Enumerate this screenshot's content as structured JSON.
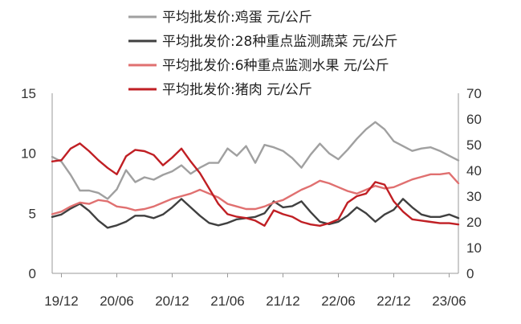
{
  "chart_data": {
    "type": "line",
    "x_ticks": [
      "19/12",
      "20/06",
      "20/12",
      "21/06",
      "21/12",
      "22/06",
      "22/12",
      "23/06"
    ],
    "x_range": [
      "2019-11",
      "2023-07"
    ],
    "left_axis": {
      "ylim": [
        0,
        15
      ],
      "ticks": [
        "0",
        "5",
        "10",
        "15"
      ]
    },
    "right_axis": {
      "ylim": [
        0,
        70
      ],
      "ticks": [
        "0",
        "10",
        "20",
        "30",
        "40",
        "50",
        "60",
        "70"
      ]
    },
    "legend_position": "top",
    "grid": false,
    "series": [
      {
        "name": "平均批发价:鸡蛋 元/公斤",
        "axis": "left",
        "color": "#a0a0a0",
        "points": [
          [
            "2019-11",
            9.7
          ],
          [
            "2019-12",
            9.3
          ],
          [
            "2020-01",
            8.2
          ],
          [
            "2020-02",
            6.9
          ],
          [
            "2020-03",
            6.9
          ],
          [
            "2020-04",
            6.7
          ],
          [
            "2020-05",
            6.2
          ],
          [
            "2020-06",
            7.0
          ],
          [
            "2020-07",
            8.6
          ],
          [
            "2020-08",
            7.6
          ],
          [
            "2020-09",
            8.0
          ],
          [
            "2020-10",
            7.8
          ],
          [
            "2020-11",
            8.2
          ],
          [
            "2020-12",
            8.5
          ],
          [
            "2021-01",
            9.0
          ],
          [
            "2021-02",
            8.3
          ],
          [
            "2021-03",
            8.8
          ],
          [
            "2021-04",
            9.2
          ],
          [
            "2021-05",
            9.2
          ],
          [
            "2021-06",
            10.4
          ],
          [
            "2021-07",
            9.8
          ],
          [
            "2021-08",
            10.6
          ],
          [
            "2021-09",
            9.2
          ],
          [
            "2021-10",
            10.7
          ],
          [
            "2021-11",
            10.5
          ],
          [
            "2021-12",
            10.2
          ],
          [
            "2022-01",
            9.6
          ],
          [
            "2022-02",
            8.8
          ],
          [
            "2022-03",
            9.9
          ],
          [
            "2022-04",
            10.8
          ],
          [
            "2022-05",
            10.0
          ],
          [
            "2022-06",
            9.5
          ],
          [
            "2022-07",
            10.3
          ],
          [
            "2022-08",
            11.2
          ],
          [
            "2022-09",
            12.0
          ],
          [
            "2022-10",
            12.6
          ],
          [
            "2022-11",
            12.0
          ],
          [
            "2022-12",
            11.0
          ],
          [
            "2023-01",
            10.6
          ],
          [
            "2023-02",
            10.2
          ],
          [
            "2023-03",
            10.4
          ],
          [
            "2023-04",
            10.5
          ],
          [
            "2023-05",
            10.2
          ],
          [
            "2023-06",
            9.8
          ],
          [
            "2023-07",
            9.4
          ]
        ]
      },
      {
        "name": "平均批发价:28种重点监测蔬菜 元/公斤",
        "axis": "left",
        "color": "#404040",
        "points": [
          [
            "2019-11",
            4.7
          ],
          [
            "2019-12",
            4.9
          ],
          [
            "2020-01",
            5.4
          ],
          [
            "2020-02",
            5.8
          ],
          [
            "2020-03",
            5.2
          ],
          [
            "2020-04",
            4.4
          ],
          [
            "2020-05",
            3.8
          ],
          [
            "2020-06",
            4.0
          ],
          [
            "2020-07",
            4.3
          ],
          [
            "2020-08",
            4.8
          ],
          [
            "2020-09",
            4.8
          ],
          [
            "2020-10",
            4.6
          ],
          [
            "2020-11",
            4.9
          ],
          [
            "2020-12",
            5.5
          ],
          [
            "2021-01",
            6.2
          ],
          [
            "2021-02",
            5.5
          ],
          [
            "2021-03",
            4.8
          ],
          [
            "2021-04",
            4.2
          ],
          [
            "2021-05",
            4.0
          ],
          [
            "2021-06",
            4.2
          ],
          [
            "2021-07",
            4.5
          ],
          [
            "2021-08",
            4.6
          ],
          [
            "2021-09",
            4.7
          ],
          [
            "2021-10",
            5.0
          ],
          [
            "2021-11",
            6.0
          ],
          [
            "2021-12",
            5.5
          ],
          [
            "2022-01",
            5.6
          ],
          [
            "2022-02",
            6.0
          ],
          [
            "2022-03",
            5.1
          ],
          [
            "2022-04",
            4.3
          ],
          [
            "2022-05",
            4.1
          ],
          [
            "2022-06",
            4.3
          ],
          [
            "2022-07",
            4.8
          ],
          [
            "2022-08",
            5.5
          ],
          [
            "2022-09",
            5.0
          ],
          [
            "2022-10",
            4.3
          ],
          [
            "2022-11",
            4.9
          ],
          [
            "2022-12",
            5.3
          ],
          [
            "2023-01",
            6.2
          ],
          [
            "2023-02",
            5.5
          ],
          [
            "2023-03",
            4.9
          ],
          [
            "2023-04",
            4.7
          ],
          [
            "2023-05",
            4.7
          ],
          [
            "2023-06",
            4.9
          ],
          [
            "2023-07",
            4.6
          ]
        ]
      },
      {
        "name": "平均批发价:6种重点监测水果 元/公斤",
        "axis": "right",
        "color": "#e07070",
        "points": [
          [
            "2019-11",
            23.0
          ],
          [
            "2019-12",
            24.0
          ],
          [
            "2020-01",
            26.0
          ],
          [
            "2020-02",
            27.5
          ],
          [
            "2020-03",
            27.0
          ],
          [
            "2020-04",
            28.5
          ],
          [
            "2020-05",
            28.0
          ],
          [
            "2020-06",
            26.0
          ],
          [
            "2020-07",
            25.5
          ],
          [
            "2020-08",
            24.5
          ],
          [
            "2020-09",
            25.0
          ],
          [
            "2020-10",
            26.0
          ],
          [
            "2020-11",
            27.5
          ],
          [
            "2020-12",
            29.0
          ],
          [
            "2021-01",
            30.0
          ],
          [
            "2021-02",
            31.0
          ],
          [
            "2021-03",
            32.5
          ],
          [
            "2021-04",
            31.0
          ],
          [
            "2021-05",
            29.5
          ],
          [
            "2021-06",
            27.0
          ],
          [
            "2021-07",
            26.0
          ],
          [
            "2021-08",
            25.0
          ],
          [
            "2021-09",
            25.0
          ],
          [
            "2021-10",
            26.0
          ],
          [
            "2021-11",
            27.5
          ],
          [
            "2021-12",
            28.5
          ],
          [
            "2022-01",
            30.5
          ],
          [
            "2022-02",
            32.5
          ],
          [
            "2022-03",
            34.0
          ],
          [
            "2022-04",
            36.0
          ],
          [
            "2022-05",
            35.0
          ],
          [
            "2022-06",
            33.5
          ],
          [
            "2022-07",
            32.0
          ],
          [
            "2022-08",
            31.0
          ],
          [
            "2022-09",
            32.5
          ],
          [
            "2022-10",
            34.0
          ],
          [
            "2022-11",
            33.0
          ],
          [
            "2022-12",
            33.5
          ],
          [
            "2023-01",
            35.0
          ],
          [
            "2023-02",
            36.5
          ],
          [
            "2023-03",
            37.5
          ],
          [
            "2023-04",
            38.5
          ],
          [
            "2023-05",
            38.5
          ],
          [
            "2023-06",
            39.0
          ],
          [
            "2023-07",
            35.0
          ]
        ]
      },
      {
        "name": "平均批发价:猪肉 元/公斤",
        "axis": "right",
        "color": "#c01f24",
        "points": [
          [
            "2019-11",
            43.5
          ],
          [
            "2019-12",
            44.0
          ],
          [
            "2020-01",
            48.5
          ],
          [
            "2020-02",
            50.5
          ],
          [
            "2020-03",
            47.5
          ],
          [
            "2020-04",
            44.0
          ],
          [
            "2020-05",
            41.0
          ],
          [
            "2020-06",
            38.5
          ],
          [
            "2020-07",
            45.5
          ],
          [
            "2020-08",
            48.0
          ],
          [
            "2020-09",
            47.5
          ],
          [
            "2020-10",
            46.0
          ],
          [
            "2020-11",
            42.0
          ],
          [
            "2020-12",
            45.0
          ],
          [
            "2021-01",
            48.5
          ],
          [
            "2021-02",
            43.5
          ],
          [
            "2021-03",
            39.0
          ],
          [
            "2021-04",
            33.0
          ],
          [
            "2021-05",
            27.0
          ],
          [
            "2021-06",
            23.0
          ],
          [
            "2021-07",
            22.0
          ],
          [
            "2021-08",
            21.5
          ],
          [
            "2021-09",
            20.5
          ],
          [
            "2021-10",
            18.5
          ],
          [
            "2021-11",
            24.5
          ],
          [
            "2021-12",
            23.0
          ],
          [
            "2022-01",
            22.0
          ],
          [
            "2022-02",
            20.0
          ],
          [
            "2022-03",
            19.0
          ],
          [
            "2022-04",
            18.5
          ],
          [
            "2022-05",
            19.5
          ],
          [
            "2022-06",
            21.0
          ],
          [
            "2022-07",
            27.5
          ],
          [
            "2022-08",
            30.0
          ],
          [
            "2022-09",
            31.0
          ],
          [
            "2022-10",
            35.5
          ],
          [
            "2022-11",
            34.5
          ],
          [
            "2022-12",
            28.0
          ],
          [
            "2023-01",
            24.0
          ],
          [
            "2023-02",
            21.0
          ],
          [
            "2023-03",
            20.5
          ],
          [
            "2023-04",
            20.0
          ],
          [
            "2023-05",
            19.5
          ],
          [
            "2023-06",
            19.5
          ],
          [
            "2023-07",
            19.0
          ]
        ]
      }
    ]
  }
}
